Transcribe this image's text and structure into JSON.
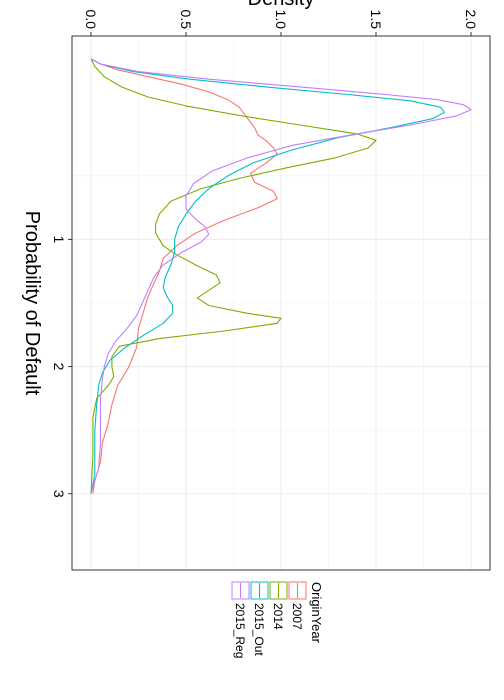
{
  "chart_data": {
    "type": "line",
    "xlabel": "Probability of Default",
    "ylabel": "Density",
    "xlim": [
      -0.6,
      3.6
    ],
    "ylim": [
      -0.1,
      2.1
    ],
    "x_ticks": [
      1,
      2,
      3
    ],
    "x_tick_labels": [
      "1",
      "2",
      "3"
    ],
    "y_ticks": [
      0,
      0.5,
      1,
      1.5,
      2
    ],
    "y_tick_labels": [
      "0.0",
      "0.5",
      "1.0",
      "1.5",
      "2.0"
    ],
    "grid": true,
    "legend": {
      "title": "OriginYear",
      "position": "top-right"
    },
    "series": [
      {
        "name": "2007",
        "color": "#F8766D",
        "points": [
          [
            -0.42,
            0
          ],
          [
            -0.38,
            0.05
          ],
          [
            -0.33,
            0.15
          ],
          [
            -0.28,
            0.3
          ],
          [
            -0.22,
            0.48
          ],
          [
            -0.16,
            0.62
          ],
          [
            -0.1,
            0.72
          ],
          [
            -0.04,
            0.78
          ],
          [
            0.04,
            0.82
          ],
          [
            0.12,
            0.86
          ],
          [
            0.18,
            0.88
          ],
          [
            0.22,
            0.92
          ],
          [
            0.28,
            0.96
          ],
          [
            0.33,
            0.98
          ],
          [
            0.4,
            0.92
          ],
          [
            0.48,
            0.84
          ],
          [
            0.55,
            0.86
          ],
          [
            0.62,
            0.96
          ],
          [
            0.68,
            0.98
          ],
          [
            0.75,
            0.88
          ],
          [
            0.85,
            0.7
          ],
          [
            0.95,
            0.55
          ],
          [
            1.05,
            0.45
          ],
          [
            1.15,
            0.38
          ],
          [
            1.25,
            0.36
          ],
          [
            1.35,
            0.33
          ],
          [
            1.45,
            0.3
          ],
          [
            1.55,
            0.28
          ],
          [
            1.7,
            0.25
          ],
          [
            1.85,
            0.24
          ],
          [
            2.0,
            0.2
          ],
          [
            2.15,
            0.14
          ],
          [
            2.3,
            0.11
          ],
          [
            2.45,
            0.09
          ],
          [
            2.6,
            0.06
          ],
          [
            2.75,
            0.05
          ],
          [
            2.9,
            0.02
          ],
          [
            3.0,
            0.01
          ]
        ]
      },
      {
        "name": "2014",
        "color": "#7CAE00",
        "points": [
          [
            -0.42,
            0
          ],
          [
            -0.36,
            0.02
          ],
          [
            -0.28,
            0.07
          ],
          [
            -0.2,
            0.16
          ],
          [
            -0.12,
            0.3
          ],
          [
            -0.05,
            0.5
          ],
          [
            0.03,
            0.8
          ],
          [
            0.1,
            1.1
          ],
          [
            0.17,
            1.4
          ],
          [
            0.22,
            1.5
          ],
          [
            0.28,
            1.46
          ],
          [
            0.36,
            1.28
          ],
          [
            0.44,
            1.02
          ],
          [
            0.52,
            0.78
          ],
          [
            0.6,
            0.58
          ],
          [
            0.7,
            0.42
          ],
          [
            0.8,
            0.36
          ],
          [
            0.88,
            0.34
          ],
          [
            0.95,
            0.34
          ],
          [
            1.05,
            0.38
          ],
          [
            1.12,
            0.45
          ],
          [
            1.2,
            0.55
          ],
          [
            1.28,
            0.66
          ],
          [
            1.34,
            0.68
          ],
          [
            1.4,
            0.62
          ],
          [
            1.46,
            0.56
          ],
          [
            1.52,
            0.62
          ],
          [
            1.58,
            0.82
          ],
          [
            1.62,
            1.0
          ],
          [
            1.66,
            0.98
          ],
          [
            1.72,
            0.7
          ],
          [
            1.78,
            0.36
          ],
          [
            1.84,
            0.15
          ],
          [
            1.92,
            0.11
          ],
          [
            2.0,
            0.11
          ],
          [
            2.08,
            0.12
          ],
          [
            2.15,
            0.09
          ],
          [
            2.25,
            0.03
          ],
          [
            2.4,
            0.01
          ],
          [
            2.7,
            0.01
          ],
          [
            3.0,
            0
          ]
        ]
      },
      {
        "name": "2015_Out",
        "color": "#00BFC4",
        "points": [
          [
            -0.42,
            0
          ],
          [
            -0.38,
            0.05
          ],
          [
            -0.32,
            0.22
          ],
          [
            -0.26,
            0.52
          ],
          [
            -0.2,
            0.92
          ],
          [
            -0.14,
            1.35
          ],
          [
            -0.09,
            1.68
          ],
          [
            -0.04,
            1.84
          ],
          [
            0.0,
            1.86
          ],
          [
            0.05,
            1.8
          ],
          [
            0.12,
            1.58
          ],
          [
            0.2,
            1.3
          ],
          [
            0.3,
            1.05
          ],
          [
            0.4,
            0.85
          ],
          [
            0.5,
            0.72
          ],
          [
            0.6,
            0.62
          ],
          [
            0.7,
            0.55
          ],
          [
            0.8,
            0.5
          ],
          [
            0.9,
            0.46
          ],
          [
            1.0,
            0.44
          ],
          [
            1.1,
            0.44
          ],
          [
            1.2,
            0.42
          ],
          [
            1.3,
            0.39
          ],
          [
            1.38,
            0.38
          ],
          [
            1.45,
            0.4
          ],
          [
            1.52,
            0.43
          ],
          [
            1.58,
            0.43
          ],
          [
            1.66,
            0.38
          ],
          [
            1.75,
            0.28
          ],
          [
            1.85,
            0.18
          ],
          [
            1.95,
            0.1
          ],
          [
            2.05,
            0.06
          ],
          [
            2.15,
            0.04
          ],
          [
            2.3,
            0.03
          ],
          [
            2.5,
            0.02
          ],
          [
            2.7,
            0.02
          ],
          [
            2.85,
            0.02
          ],
          [
            3.0,
            0
          ]
        ]
      },
      {
        "name": "2015_Reg",
        "color": "#C77CFF",
        "points": [
          [
            -0.42,
            0
          ],
          [
            -0.38,
            0.05
          ],
          [
            -0.32,
            0.25
          ],
          [
            -0.26,
            0.62
          ],
          [
            -0.2,
            1.1
          ],
          [
            -0.14,
            1.55
          ],
          [
            -0.1,
            1.82
          ],
          [
            -0.06,
            1.96
          ],
          [
            -0.02,
            2.0
          ],
          [
            0.03,
            1.92
          ],
          [
            0.1,
            1.68
          ],
          [
            0.18,
            1.36
          ],
          [
            0.26,
            1.06
          ],
          [
            0.36,
            0.82
          ],
          [
            0.46,
            0.64
          ],
          [
            0.56,
            0.54
          ],
          [
            0.66,
            0.5
          ],
          [
            0.76,
            0.5
          ],
          [
            0.84,
            0.55
          ],
          [
            0.9,
            0.6
          ],
          [
            0.96,
            0.62
          ],
          [
            1.02,
            0.58
          ],
          [
            1.1,
            0.48
          ],
          [
            1.2,
            0.38
          ],
          [
            1.3,
            0.33
          ],
          [
            1.4,
            0.3
          ],
          [
            1.5,
            0.27
          ],
          [
            1.6,
            0.24
          ],
          [
            1.7,
            0.19
          ],
          [
            1.8,
            0.13
          ],
          [
            1.9,
            0.09
          ],
          [
            2.0,
            0.07
          ],
          [
            2.1,
            0.06
          ],
          [
            2.25,
            0.05
          ],
          [
            2.4,
            0.05
          ],
          [
            2.6,
            0.05
          ],
          [
            2.8,
            0.04
          ],
          [
            3.0,
            0
          ]
        ]
      }
    ]
  }
}
